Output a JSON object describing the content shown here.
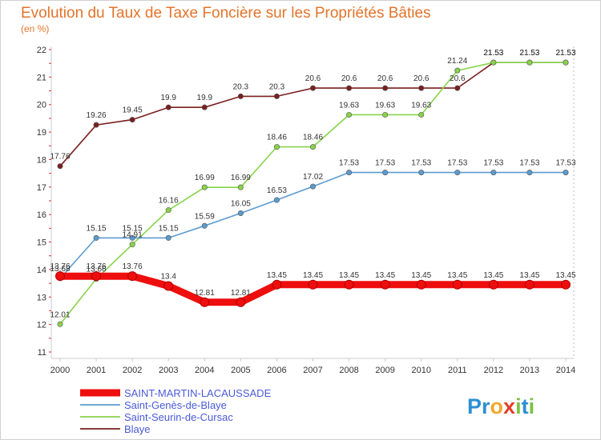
{
  "chart_data": {
    "type": "line",
    "title": "Evolution du Taux de Taxe Foncière sur les Propriétés Bâties",
    "subtitle": "(en %)",
    "xlabel": "",
    "ylabel": "",
    "x": [
      "2000",
      "2001",
      "2002",
      "2003",
      "2004",
      "2005",
      "2006",
      "2007",
      "2008",
      "2009",
      "2010",
      "2011",
      "2012",
      "2013",
      "2014"
    ],
    "ylim": [
      11,
      22
    ],
    "yticks": [
      "11",
      "12",
      "13",
      "14",
      "15",
      "16",
      "17",
      "18",
      "19",
      "20",
      "21",
      "22"
    ],
    "grid": false,
    "legend_position": "bottom-left",
    "series": [
      {
        "name": "Blaye",
        "color": "#7a1f1f",
        "values": [
          17.76,
          19.26,
          19.45,
          19.9,
          19.9,
          20.3,
          20.3,
          20.6,
          20.6,
          20.6,
          20.6,
          20.6,
          21.53,
          21.53,
          21.53
        ],
        "labels": [
          "17.76",
          "19.26",
          "19.45",
          "19.9",
          "19.9",
          "20.3",
          "20.3",
          "20.6",
          "20.6",
          "20.6",
          "20.6",
          "20.6",
          "21.53",
          "21.53",
          "21.53"
        ]
      },
      {
        "name": "Saint-Seurin-de-Cursac",
        "color": "#88d34a",
        "values": [
          12.01,
          13.66,
          14.91,
          16.16,
          16.99,
          16.99,
          18.46,
          18.46,
          19.63,
          19.63,
          19.63,
          21.24,
          21.53,
          21.53,
          21.53
        ],
        "labels": [
          "12.01",
          "13.66",
          "14.91",
          "16.16",
          "16.99",
          "16.99",
          "18.46",
          "18.46",
          "19.63",
          "19.63",
          "19.63",
          "21.24",
          "21.53",
          "21.53",
          "21.53"
        ]
      },
      {
        "name": "Saint-Genès-de-Blaye",
        "color": "#5b9bd0",
        "values": [
          13.68,
          15.15,
          15.15,
          15.15,
          15.59,
          16.05,
          16.53,
          17.02,
          17.53,
          17.53,
          17.53,
          17.53,
          17.53,
          17.53,
          17.53
        ],
        "labels": [
          "13.68",
          "15.15",
          "15.15",
          "15.15",
          "15.59",
          "16.05",
          "16.53",
          "17.02",
          "17.53",
          "17.53",
          "17.53",
          "17.53",
          "17.53",
          "17.53",
          "17.53"
        ]
      },
      {
        "name": "SAINT-MARTIN-LACAUSSADE",
        "color": "#ee0e0e",
        "values": [
          13.76,
          13.76,
          13.76,
          13.4,
          12.81,
          12.81,
          13.45,
          13.45,
          13.45,
          13.45,
          13.45,
          13.45,
          13.45,
          13.45,
          13.45
        ],
        "labels": [
          "13.76",
          "13.76",
          "13.76",
          "13.4",
          "12.81",
          "12.81",
          "13.45",
          "13.45",
          "13.45",
          "13.45",
          "13.45",
          "13.45",
          "13.45",
          "13.45",
          "13.45"
        ]
      }
    ],
    "legend": [
      {
        "name": "SAINT-MARTIN-LACAUSSADE",
        "color": "#ee0e0e"
      },
      {
        "name": "Saint-Genès-de-Blaye",
        "color": "#5b9bd0"
      },
      {
        "name": "Saint-Seurin-de-Cursac",
        "color": "#88d34a"
      },
      {
        "name": "Blaye",
        "color": "#7a1f1f"
      }
    ]
  },
  "logo": {
    "parts": [
      {
        "text": "P",
        "color": "#2d8fd3"
      },
      {
        "text": "r",
        "color": "#2d8fd3"
      },
      {
        "text": "o",
        "color": "#f2a72b"
      },
      {
        "text": "x",
        "color": "#e23d2b"
      },
      {
        "text": "i",
        "color": "#7cc243"
      },
      {
        "text": "t",
        "color": "#2d8fd3"
      },
      {
        "text": "i",
        "color": "#7cc243"
      }
    ]
  }
}
